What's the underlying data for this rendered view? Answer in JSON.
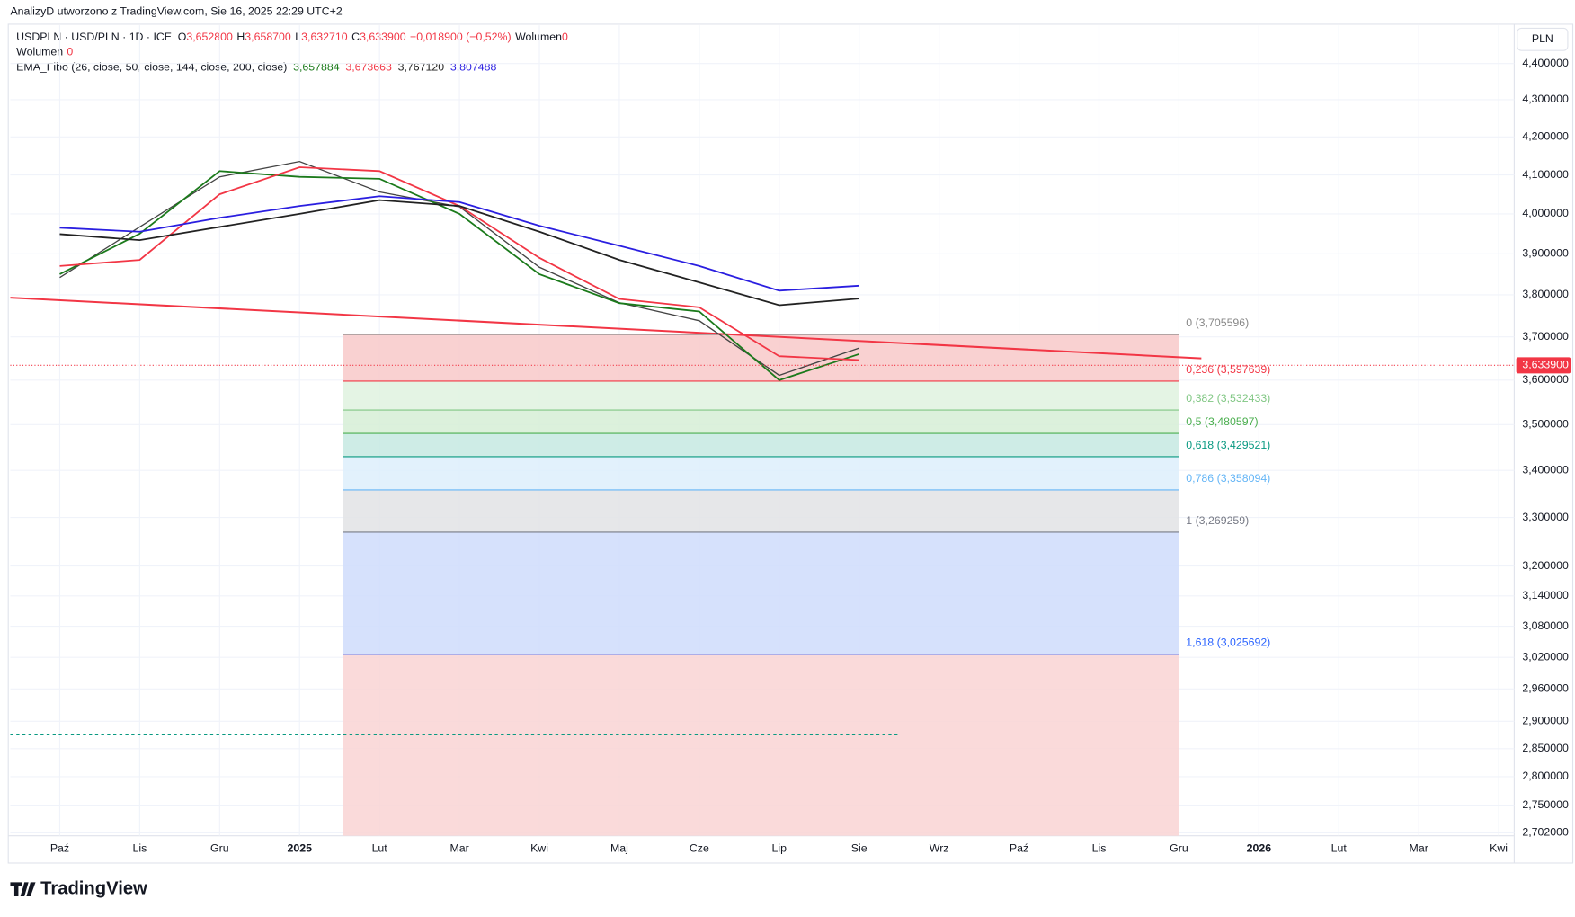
{
  "header": {
    "caption": "AnalizyD utworzono z TradingView.com, Sie 16, 2025 22:29 UTC+2",
    "symbol": "USDPLN · USD/PLN · 1D · ICE",
    "ohlc": [
      "O",
      "3,652800",
      "H",
      "3,658700",
      "L",
      "3,632710",
      "C",
      "3,633900",
      "−0,018900 (−0,52%)"
    ],
    "volume_label": "Wolumen",
    "volume_value": "0",
    "volume_row": "Wolumen",
    "volume_row_value": "0",
    "indicator": "EMA_Fibo (26, close, 50, close, 144, close, 200, close)",
    "indicator_values": [
      "3,657884",
      "3,673663",
      "3,767120",
      "3,807488"
    ],
    "currency": "PLN",
    "logo": "TradingView"
  },
  "chart_data": {
    "type": "line",
    "log_scale": true,
    "x": [
      "2024-10",
      "2024-11",
      "2024-12",
      "2025-01",
      "2025-02",
      "2025-03",
      "2025-04",
      "2025-05",
      "2025-06",
      "2025-07",
      "2025-08"
    ],
    "series": [
      {
        "name": "USDPLN",
        "color": "#444444",
        "values": [
          3.842,
          3.967,
          4.095,
          4.135,
          4.056,
          4.018,
          3.867,
          3.781,
          3.738,
          3.611,
          3.674
        ]
      },
      {
        "name": "EMA 26",
        "color": "#1b7a1b",
        "values": [
          3.85,
          3.95,
          4.11,
          4.095,
          4.09,
          4.0,
          3.85,
          3.78,
          3.76,
          3.6,
          3.66
        ]
      },
      {
        "name": "EMA 50",
        "color": "#f23645",
        "values": [
          3.87,
          3.885,
          4.05,
          4.12,
          4.11,
          4.02,
          3.89,
          3.79,
          3.77,
          3.655,
          3.646
        ]
      },
      {
        "name": "EMA 144",
        "color": "#222222",
        "values": [
          3.949,
          3.934,
          3.967,
          4.0,
          4.035,
          4.02,
          3.955,
          3.885,
          3.83,
          3.775,
          3.791
        ]
      },
      {
        "name": "EMA 200",
        "color": "#2a1ee0",
        "values": [
          3.965,
          3.955,
          3.99,
          4.02,
          4.045,
          4.03,
          3.97,
          3.92,
          3.87,
          3.81,
          3.822
        ]
      }
    ],
    "ylim": [
      2.697,
      4.508
    ],
    "yticks": [
      {
        "value": 4.4,
        "label": "4,400000"
      },
      {
        "value": 4.3,
        "label": "4,300000"
      },
      {
        "value": 4.2,
        "label": "4,200000"
      },
      {
        "value": 4.1,
        "label": "4,100000"
      },
      {
        "value": 4.0,
        "label": "4,000000"
      },
      {
        "value": 3.9,
        "label": "3,900000"
      },
      {
        "value": 3.8,
        "label": "3,800000"
      },
      {
        "value": 3.7,
        "label": "3,700000"
      },
      {
        "value": 3.6,
        "label": "3,600000"
      },
      {
        "value": 3.5,
        "label": "3,500000"
      },
      {
        "value": 3.4,
        "label": "3,400000"
      },
      {
        "value": 3.3,
        "label": "3,300000"
      },
      {
        "value": 3.2,
        "label": "3,200000"
      },
      {
        "value": 3.14,
        "label": "3,140000"
      },
      {
        "value": 3.08,
        "label": "3,080000"
      },
      {
        "value": 3.02,
        "label": "3,020000"
      },
      {
        "value": 2.96,
        "label": "2,960000"
      },
      {
        "value": 2.9,
        "label": "2,900000"
      },
      {
        "value": 2.85,
        "label": "2,850000"
      },
      {
        "value": 2.8,
        "label": "2,800000"
      },
      {
        "value": 2.75,
        "label": "2,750000"
      },
      {
        "value": 2.702,
        "label": "2,702000"
      }
    ],
    "xticks": [
      {
        "value": "2024-10",
        "label": "Paź"
      },
      {
        "value": "2024-11",
        "label": "Lis"
      },
      {
        "value": "2024-12",
        "label": "Gru"
      },
      {
        "value": "2025-01",
        "label": "2025"
      },
      {
        "value": "2025-02",
        "label": "Lut"
      },
      {
        "value": "2025-03",
        "label": "Mar"
      },
      {
        "value": "2025-04",
        "label": "Kwi"
      },
      {
        "value": "2025-05",
        "label": "Maj"
      },
      {
        "value": "2025-06",
        "label": "Cze"
      },
      {
        "value": "2025-07",
        "label": "Lip"
      },
      {
        "value": "2025-08",
        "label": "Sie"
      },
      {
        "value": "2025-09",
        "label": "Wrz"
      },
      {
        "value": "2025-10",
        "label": "Paź"
      },
      {
        "value": "2025-11",
        "label": "Lis"
      },
      {
        "value": "2025-12",
        "label": "Gru"
      },
      {
        "value": "2026-01",
        "label": "2026"
      },
      {
        "value": "2026-02",
        "label": "Lut"
      },
      {
        "value": "2026-03",
        "label": "Mar"
      },
      {
        "value": "2026-04",
        "label": "Kwi"
      }
    ],
    "fib_levels": [
      {
        "price": 3.705596,
        "label": "0 (3,705596)",
        "color": "#888888",
        "fill": "#f8c9c9"
      },
      {
        "price": 3.597639,
        "label": "0,236 (3,597639)",
        "color": "#f23645",
        "fill": "#dff2df"
      },
      {
        "price": 3.532433,
        "label": "0,382 (3,532433)",
        "color": "#81c784",
        "fill": "#d6efd6"
      },
      {
        "price": 3.480597,
        "label": "0,5 (3,480597)",
        "color": "#4caf50",
        "fill": "#c6e9e2"
      },
      {
        "price": 3.429521,
        "label": "0,618 (3,429521)",
        "color": "#089981",
        "fill": "#ddeefc"
      },
      {
        "price": 3.358094,
        "label": "0,786 (3,358094)",
        "color": "#64b5f6",
        "fill": "#e2e3e5"
      },
      {
        "price": 3.269259,
        "label": "1 (3,269259)",
        "color": "#787b86",
        "fill": "#cfdcfb"
      },
      {
        "price": 3.025692,
        "label": "1,618 (3,025692)",
        "color": "#2962ff",
        "fill": "#f9d3d3"
      }
    ],
    "fib_start": "2025-01",
    "fib_end": "2025-12",
    "trendline": {
      "color": "#f23645",
      "values": [
        3.793,
        3.65
      ]
    },
    "alert_line": 2.875,
    "last_price": {
      "value": 3.6339,
      "label": "3,633900"
    }
  }
}
